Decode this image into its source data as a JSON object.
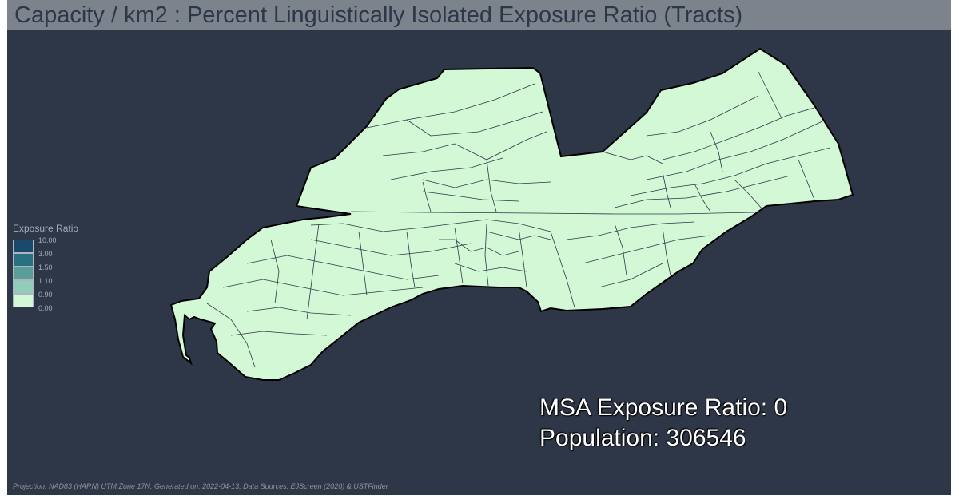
{
  "title": "Capacity / km2 : Percent Linguistically Isolated Exposure Ratio (Tracts)",
  "legend": {
    "title": "Exposure Ratio",
    "items": [
      {
        "label": "10.00",
        "color": "#1a4a6b"
      },
      {
        "label": "3.00",
        "color": "#2b6f82"
      },
      {
        "label": "1.50",
        "color": "#5a9e9a"
      },
      {
        "label": "1.10",
        "color": "#92ccbb"
      },
      {
        "label": "0.90",
        "color": "#d3f8d6"
      },
      {
        "label": "0.00",
        "color": null
      }
    ]
  },
  "stats": {
    "exposure_label": "MSA Exposure Ratio: 0",
    "population_label": "Population: 306546"
  },
  "map": {
    "fill_color": "#d3f8d6",
    "border_color": "#2d3748",
    "background_color": "#2d3748"
  },
  "footer": "Projection: NAD83 (HARN) UTM Zone 17N, Generated on: 2022-04-13, Data Sources: EJScreen (2020) & USTFinder"
}
